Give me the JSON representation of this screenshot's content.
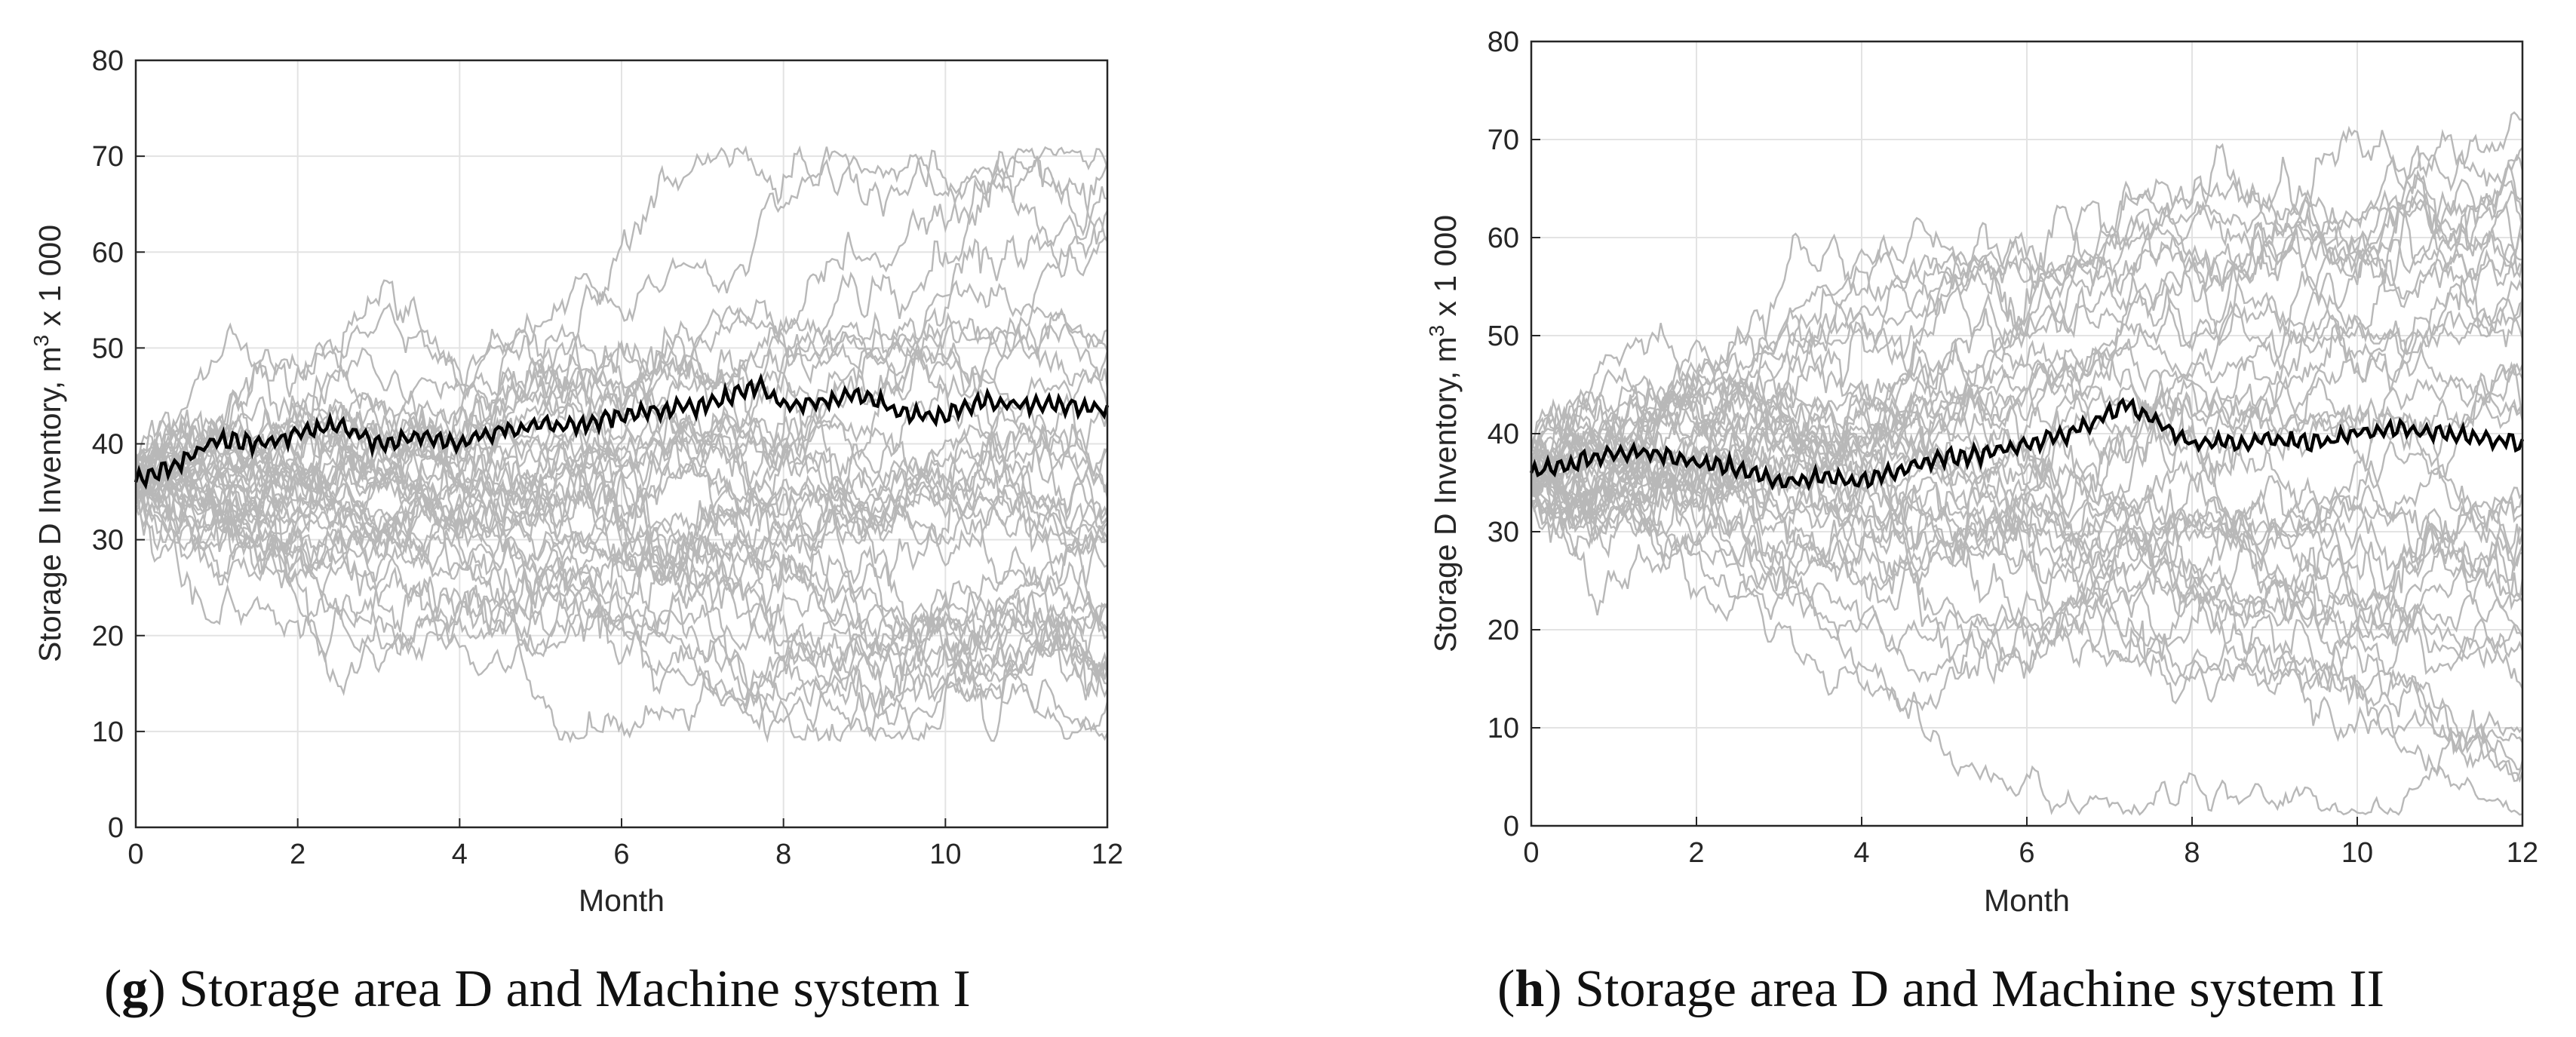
{
  "chart_data": [
    {
      "type": "line",
      "caption": {
        "open": "(",
        "letter": "g",
        "text": ") Storage area D and Machine system I"
      },
      "xlabel": "Month",
      "ylabel": "Storage D Inventory, m",
      "ylabel_sup": "3",
      "ylabel_suffix": " x 1 000",
      "xlim": [
        0,
        12
      ],
      "ylim": [
        0,
        80
      ],
      "xticks": [
        "0",
        "2",
        "4",
        "6",
        "8",
        "10",
        "12"
      ],
      "yticks": [
        "0",
        "10",
        "20",
        "30",
        "40",
        "50",
        "60",
        "70",
        "80"
      ],
      "grid": true,
      "colors": {
        "simulations": "#b8b8b8",
        "mean": "#000000"
      },
      "simulation_count": 40,
      "simulation_y_range": [
        9,
        71
      ],
      "start_value": 36,
      "mean_series": {
        "x": [
          0,
          0.5,
          1,
          1.5,
          2,
          2.5,
          3,
          3.5,
          4,
          4.5,
          5,
          5.5,
          6,
          6.5,
          7,
          7.5,
          7.7,
          8,
          8.5,
          9,
          9.5,
          10,
          10.5,
          11,
          11.5,
          12
        ],
        "y": [
          36,
          38,
          40.5,
          40,
          41,
          42,
          40,
          41,
          40,
          41.5,
          42,
          42,
          43,
          43.5,
          44,
          45.5,
          46,
          44,
          44.5,
          45,
          43,
          43,
          44.5,
          44,
          44,
          43.5
        ]
      }
    },
    {
      "type": "line",
      "caption": {
        "open": "(",
        "letter": "h",
        "text": ") Storage area D and Machine system II"
      },
      "xlabel": "Month",
      "ylabel": "Storage D Inventory, m",
      "ylabel_sup": "3",
      "ylabel_suffix": " x 1 000",
      "xlim": [
        0,
        12
      ],
      "ylim": [
        0,
        80
      ],
      "xticks": [
        "0",
        "2",
        "4",
        "6",
        "8",
        "10",
        "12"
      ],
      "yticks": [
        "0",
        "10",
        "20",
        "30",
        "40",
        "50",
        "60",
        "70",
        "80"
      ],
      "grid": true,
      "colors": {
        "simulations": "#b8b8b8",
        "mean": "#000000"
      },
      "simulation_count": 40,
      "simulation_y_range": [
        1,
        74
      ],
      "start_value": 36,
      "mean_series": {
        "x": [
          0,
          0.5,
          1,
          1.5,
          2,
          2.5,
          3,
          3.5,
          4,
          4.5,
          5,
          5.5,
          6,
          6.5,
          7,
          7.2,
          7.5,
          8,
          8.5,
          9,
          9.5,
          10,
          10.5,
          11,
          11.5,
          12
        ],
        "y": [
          36,
          37,
          38,
          38,
          37,
          36.5,
          35,
          35.5,
          35,
          36.5,
          37.5,
          38,
          39,
          40,
          42,
          43,
          41.5,
          39,
          39,
          39.5,
          39,
          40,
          40.5,
          40,
          39.5,
          39
        ]
      }
    }
  ]
}
